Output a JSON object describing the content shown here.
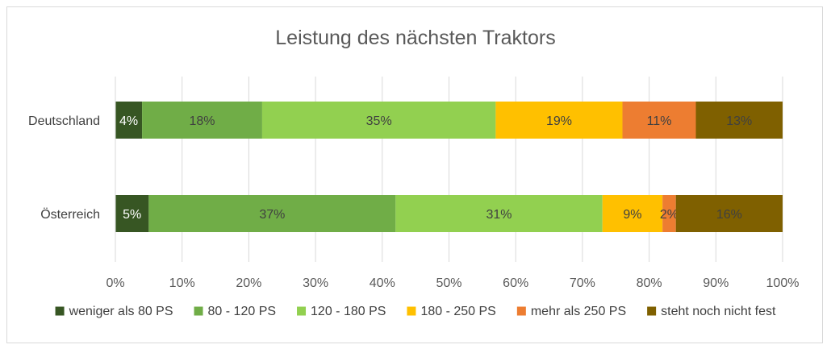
{
  "chart_data": {
    "type": "bar",
    "orientation": "horizontal",
    "stacked": "percent",
    "title": "Leistung des nächsten Traktors",
    "categories": [
      "Deutschland",
      "Österreich"
    ],
    "series": [
      {
        "name": "weniger als 80 PS",
        "values": [
          4,
          5
        ],
        "color": "#375623",
        "label_color": "#ffffff"
      },
      {
        "name": "80 - 120 PS",
        "values": [
          18,
          37
        ],
        "color": "#70ad47",
        "label_color": "#404040"
      },
      {
        "name": "120 - 180 PS",
        "values": [
          35,
          31
        ],
        "color": "#92d050",
        "label_color": "#404040"
      },
      {
        "name": "180 - 250 PS",
        "values": [
          19,
          9
        ],
        "color": "#ffc000",
        "label_color": "#404040"
      },
      {
        "name": "mehr als 250 PS",
        "values": [
          11,
          2
        ],
        "color": "#ed7d31",
        "label_color": "#404040"
      },
      {
        "name": "steht noch nicht fest",
        "values": [
          13,
          16
        ],
        "color": "#7f6000",
        "label_color": "#404040"
      }
    ],
    "xlim": [
      0,
      100
    ],
    "x_ticks": [
      "0%",
      "10%",
      "20%",
      "30%",
      "40%",
      "50%",
      "60%",
      "70%",
      "80%",
      "90%",
      "100%"
    ],
    "grid": true,
    "legend_position": "bottom"
  }
}
